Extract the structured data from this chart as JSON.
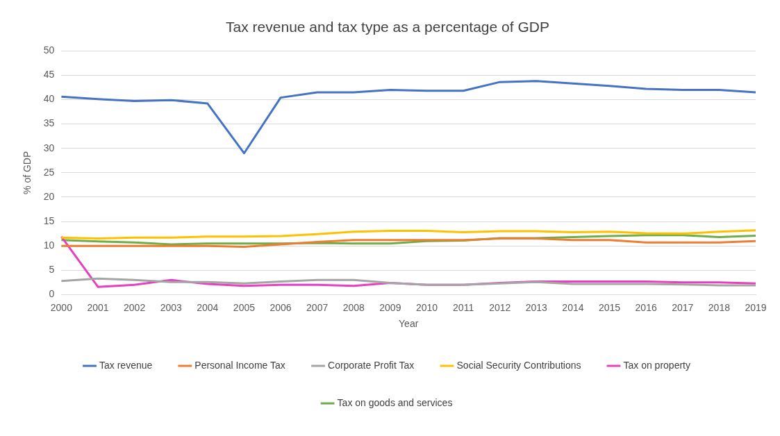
{
  "chart_data": {
    "type": "line",
    "title": "Tax revenue and tax type as a percentage of GDP",
    "xlabel": "Year",
    "ylabel": "% of GDP",
    "categories": [
      "2000",
      "2001",
      "2002",
      "2003",
      "2004",
      "2005",
      "2006",
      "2007",
      "2008",
      "2009",
      "2010",
      "2011",
      "2012",
      "2013",
      "2014",
      "2015",
      "2016",
      "2017",
      "2018",
      "2019"
    ],
    "series": [
      {
        "name": "Tax revenue",
        "color": "#4472c4",
        "values": [
          40.6,
          40.1,
          39.7,
          39.9,
          39.2,
          29.0,
          40.4,
          41.5,
          41.5,
          42.0,
          41.8,
          41.8,
          43.6,
          43.8,
          43.3,
          42.8,
          42.2,
          42.0,
          42.0,
          41.5
        ]
      },
      {
        "name": "Personal Income Tax",
        "color": "#ed7d31",
        "values": [
          10.0,
          10.0,
          10.0,
          10.0,
          10.0,
          9.8,
          10.3,
          10.8,
          11.2,
          11.2,
          11.2,
          11.2,
          11.5,
          11.5,
          11.2,
          11.2,
          10.7,
          10.7,
          10.7,
          11.0
        ]
      },
      {
        "name": "Corporate Profit Tax",
        "color": "#a5a5a5",
        "values": [
          2.8,
          3.3,
          3.0,
          2.6,
          2.6,
          2.3,
          2.7,
          3.0,
          3.0,
          2.4,
          2.0,
          2.0,
          2.3,
          2.6,
          2.2,
          2.2,
          2.2,
          2.1,
          1.9,
          1.9
        ]
      },
      {
        "name": "Social Security Contributions",
        "color": "#ffc000",
        "values": [
          11.7,
          11.5,
          11.7,
          11.7,
          11.9,
          11.9,
          12.0,
          12.4,
          12.9,
          13.1,
          13.1,
          12.8,
          13.0,
          13.0,
          12.8,
          12.9,
          12.6,
          12.5,
          12.9,
          13.2
        ]
      },
      {
        "name": "Tax on property",
        "color": "#e83fbf",
        "values": [
          11.9,
          1.6,
          2.0,
          3.0,
          2.2,
          1.8,
          2.0,
          2.0,
          1.8,
          2.4,
          2.0,
          2.0,
          2.4,
          2.7,
          2.7,
          2.7,
          2.7,
          2.5,
          2.5,
          2.3
        ]
      },
      {
        "name": "Tax on goods and services",
        "color": "#70ad47",
        "values": [
          11.2,
          10.9,
          10.7,
          10.3,
          10.5,
          10.5,
          10.5,
          10.6,
          10.5,
          10.5,
          11.0,
          11.1,
          11.6,
          11.6,
          11.8,
          12.0,
          12.2,
          12.2,
          11.8,
          12.1
        ]
      }
    ],
    "ylim": [
      0,
      50
    ],
    "yticks": [
      0,
      5,
      10,
      15,
      20,
      25,
      30,
      35,
      40,
      45,
      50
    ],
    "grid": "y",
    "legend": "bottom",
    "marker": "none",
    "line_style": "solid"
  }
}
